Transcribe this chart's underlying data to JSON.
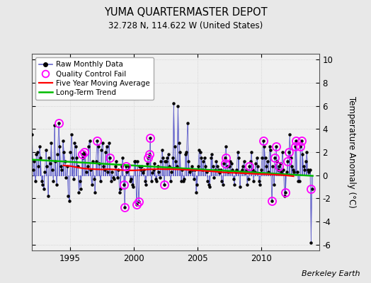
{
  "title": "YUMA QUARTERMASTER DEPOT",
  "subtitle": "32.728 N, 114.622 W (United States)",
  "ylabel": "Temperature Anomaly (°C)",
  "attribution": "Berkeley Earth",
  "ylim": [
    -6.5,
    10.5
  ],
  "xlim": [
    1992.0,
    2014.5
  ],
  "yticks": [
    -6,
    -4,
    -2,
    0,
    2,
    4,
    6,
    8,
    10
  ],
  "xticks": [
    1995,
    2000,
    2005,
    2010
  ],
  "fig_bg_color": "#e8e8e8",
  "plot_bg_color": "#f0f0f0",
  "raw_color": "#6666cc",
  "raw_marker_color": "#000000",
  "qc_color": "#ff00ff",
  "ma_color": "#ff0000",
  "trend_color": "#00bb00",
  "grid_color": "#cccccc",
  "raw_data_x": [
    1992.042,
    1992.125,
    1992.208,
    1992.292,
    1992.375,
    1992.458,
    1992.542,
    1992.625,
    1992.708,
    1992.792,
    1992.875,
    1992.958,
    1993.042,
    1993.125,
    1993.208,
    1993.292,
    1993.375,
    1993.458,
    1993.542,
    1993.625,
    1993.708,
    1993.792,
    1993.875,
    1993.958,
    1994.042,
    1994.125,
    1994.208,
    1994.292,
    1994.375,
    1994.458,
    1994.542,
    1994.625,
    1994.708,
    1994.792,
    1994.875,
    1994.958,
    1995.042,
    1995.125,
    1995.208,
    1995.292,
    1995.375,
    1995.458,
    1995.542,
    1995.625,
    1995.708,
    1995.792,
    1995.875,
    1995.958,
    1996.042,
    1996.125,
    1996.208,
    1996.292,
    1996.375,
    1996.458,
    1996.542,
    1996.625,
    1996.708,
    1996.792,
    1996.875,
    1996.958,
    1997.042,
    1997.125,
    1997.208,
    1997.292,
    1997.375,
    1997.458,
    1997.542,
    1997.625,
    1997.708,
    1997.792,
    1997.875,
    1997.958,
    1998.042,
    1998.125,
    1998.208,
    1998.292,
    1998.375,
    1998.458,
    1998.542,
    1998.625,
    1998.708,
    1998.792,
    1998.875,
    1998.958,
    1999.042,
    1999.125,
    1999.208,
    1999.292,
    1999.375,
    1999.458,
    1999.542,
    1999.625,
    1999.708,
    1999.792,
    1999.875,
    1999.958,
    2000.042,
    2000.125,
    2000.208,
    2000.292,
    2000.375,
    2000.458,
    2000.542,
    2000.625,
    2000.708,
    2000.792,
    2000.875,
    2000.958,
    2001.042,
    2001.125,
    2001.208,
    2001.292,
    2001.375,
    2001.458,
    2001.542,
    2001.625,
    2001.708,
    2001.792,
    2001.875,
    2001.958,
    2002.042,
    2002.125,
    2002.208,
    2002.292,
    2002.375,
    2002.458,
    2002.542,
    2002.625,
    2002.708,
    2002.792,
    2002.875,
    2002.958,
    2003.042,
    2003.125,
    2003.208,
    2003.292,
    2003.375,
    2003.458,
    2003.542,
    2003.625,
    2003.708,
    2003.792,
    2003.875,
    2003.958,
    2004.042,
    2004.125,
    2004.208,
    2004.292,
    2004.375,
    2004.458,
    2004.542,
    2004.625,
    2004.708,
    2004.792,
    2004.875,
    2004.958,
    2005.042,
    2005.125,
    2005.208,
    2005.292,
    2005.375,
    2005.458,
    2005.542,
    2005.625,
    2005.708,
    2005.792,
    2005.875,
    2005.958,
    2006.042,
    2006.125,
    2006.208,
    2006.292,
    2006.375,
    2006.458,
    2006.542,
    2006.625,
    2006.708,
    2006.792,
    2006.875,
    2006.958,
    2007.042,
    2007.125,
    2007.208,
    2007.292,
    2007.375,
    2007.458,
    2007.542,
    2007.625,
    2007.708,
    2007.792,
    2007.875,
    2007.958,
    2008.042,
    2008.125,
    2008.208,
    2008.292,
    2008.375,
    2008.458,
    2008.542,
    2008.625,
    2008.708,
    2008.792,
    2008.875,
    2008.958,
    2009.042,
    2009.125,
    2009.208,
    2009.292,
    2009.375,
    2009.458,
    2009.542,
    2009.625,
    2009.708,
    2009.792,
    2009.875,
    2009.958,
    2010.042,
    2010.125,
    2010.208,
    2010.292,
    2010.375,
    2010.458,
    2010.542,
    2010.625,
    2010.708,
    2010.792,
    2010.875,
    2010.958,
    2011.042,
    2011.125,
    2011.208,
    2011.292,
    2011.375,
    2011.458,
    2011.542,
    2011.625,
    2011.708,
    2011.792,
    2011.875,
    2011.958,
    2012.042,
    2012.125,
    2012.208,
    2012.292,
    2012.375,
    2012.458,
    2012.542,
    2012.625,
    2012.708,
    2012.792,
    2012.875,
    2012.958,
    2013.042,
    2013.125,
    2013.208,
    2013.292,
    2013.375,
    2013.458,
    2013.542,
    2013.625,
    2013.708,
    2013.792,
    2013.875,
    2013.958
  ],
  "raw_data_y": [
    3.5,
    0.5,
    1.2,
    -0.5,
    1.8,
    2.0,
    0.8,
    2.5,
    1.5,
    -0.5,
    -0.8,
    -1.2,
    0.3,
    2.2,
    0.8,
    -1.8,
    1.5,
    1.0,
    2.8,
    0.5,
    -0.5,
    4.3,
    1.2,
    -0.8,
    1.8,
    4.5,
    2.5,
    0.8,
    0.5,
    3.0,
    2.0,
    1.2,
    -0.2,
    0.8,
    -1.8,
    -2.2,
    2.0,
    3.5,
    1.5,
    -0.3,
    2.8,
    2.5,
    1.5,
    0.8,
    -1.5,
    -0.5,
    -1.2,
    1.8,
    1.5,
    2.0,
    1.8,
    0.3,
    0.8,
    2.5,
    3.0,
    0.5,
    -0.8,
    1.2,
    -0.3,
    -1.5,
    1.2,
    3.0,
    2.5,
    1.0,
    -0.5,
    2.2,
    2.8,
    0.8,
    0.5,
    2.0,
    2.5,
    0.3,
    2.8,
    1.5,
    -0.5,
    0.3,
    -0.2,
    -0.3,
    0.8,
    1.2,
    -0.2,
    0.5,
    -1.5,
    -1.2,
    0.8,
    1.5,
    -0.8,
    -2.8,
    0.8,
    0.3,
    0.5,
    0.8,
    -0.5,
    -0.3,
    -0.8,
    -1.0,
    1.2,
    1.2,
    -2.5,
    1.2,
    -2.3,
    0.8,
    0.5,
    0.8,
    0.2,
    0.5,
    -0.5,
    -0.8,
    1.0,
    1.5,
    1.8,
    3.2,
    -0.5,
    0.2,
    0.5,
    1.0,
    -0.3,
    -0.5,
    0.8,
    0.3,
    -0.2,
    1.2,
    2.2,
    1.5,
    -0.8,
    1.2,
    1.2,
    1.5,
    1.8,
    0.8,
    -0.5,
    0.3,
    1.5,
    6.2,
    2.5,
    1.2,
    0.8,
    6.0,
    2.8,
    2.0,
    -0.5,
    0.5,
    -0.5,
    -0.3,
    1.8,
    2.0,
    4.5,
    1.2,
    0.3,
    0.5,
    0.8,
    0.5,
    -0.3,
    0.5,
    -1.5,
    -0.8,
    0.8,
    2.2,
    2.0,
    1.5,
    0.5,
    1.2,
    1.5,
    0.8,
    0.3,
    -0.5,
    -0.8,
    -1.0,
    1.5,
    1.8,
    0.8,
    -0.2,
    0.5,
    1.2,
    0.8,
    0.5,
    0.2,
    0.5,
    -0.5,
    -0.8,
    1.0,
    1.5,
    2.5,
    0.8,
    0.3,
    0.8,
    1.2,
    1.0,
    0.5,
    -0.3,
    -0.8,
    0.3,
    0.5,
    2.0,
    1.5,
    -1.0,
    0.3,
    0.5,
    0.8,
    1.2,
    0.2,
    0.5,
    -0.8,
    -0.3,
    0.8,
    1.2,
    2.0,
    0.5,
    -0.5,
    0.3,
    1.0,
    1.5,
    0.8,
    -0.5,
    -0.8,
    0.5,
    1.5,
    3.0,
    2.5,
    1.5,
    0.8,
    1.2,
    0.3,
    2.5,
    2.2,
    -2.2,
    0.8,
    -0.8,
    1.5,
    2.5,
    1.2,
    0.5,
    0.8,
    1.0,
    0.3,
    2.0,
    0.5,
    -1.8,
    -1.5,
    0.3,
    1.2,
    2.0,
    3.5,
    1.5,
    0.8,
    0.5,
    0.3,
    2.5,
    3.0,
    0.3,
    -0.5,
    -0.5,
    2.5,
    3.0,
    1.8,
    0.8,
    0.5,
    1.2,
    2.0,
    0.5,
    0.3,
    0.5,
    -5.8,
    -1.2
  ],
  "qc_fail_x": [
    1994.125,
    1995.958,
    1996.125,
    1997.125,
    1998.125,
    1999.208,
    1999.292,
    1999.375,
    2000.208,
    2000.375,
    2001.125,
    2001.208,
    2001.292,
    2002.375,
    2007.125,
    2007.208,
    2009.042,
    2010.125,
    2010.792,
    2011.042,
    2011.125,
    2011.375,
    2011.875,
    2012.042,
    2012.125,
    2012.625,
    2012.708,
    2013.042,
    2013.125,
    2013.875
  ],
  "qc_fail_y": [
    4.5,
    1.8,
    2.0,
    3.0,
    1.5,
    -0.8,
    -2.8,
    0.8,
    -2.5,
    -2.3,
    1.5,
    1.8,
    3.2,
    -0.8,
    1.0,
    1.5,
    0.8,
    3.0,
    -2.2,
    1.5,
    2.5,
    0.8,
    -1.5,
    1.2,
    2.0,
    2.5,
    3.0,
    2.5,
    3.0,
    -1.2
  ],
  "moving_avg_x": [
    1994.5,
    1995.0,
    1995.5,
    1996.0,
    1996.5,
    1997.0,
    1997.5,
    1998.0,
    1998.5,
    1999.0,
    1999.5,
    2000.0,
    2000.5,
    2001.0,
    2001.5,
    2002.0,
    2002.5,
    2003.0,
    2003.5,
    2004.0,
    2004.5,
    2005.0,
    2005.5,
    2006.0,
    2006.5,
    2007.0,
    2007.5,
    2008.0,
    2008.5,
    2009.0,
    2009.5,
    2010.0,
    2010.5,
    2011.0,
    2011.5,
    2012.0,
    2012.5
  ],
  "moving_avg_y": [
    0.85,
    0.8,
    0.7,
    0.6,
    0.55,
    0.52,
    0.5,
    0.52,
    0.5,
    0.45,
    0.42,
    0.42,
    0.45,
    0.5,
    0.52,
    0.54,
    0.52,
    0.52,
    0.5,
    0.48,
    0.45,
    0.42,
    0.38,
    0.35,
    0.3,
    0.25,
    0.22,
    0.2,
    0.18,
    0.15,
    0.12,
    0.1,
    0.08,
    0.05,
    0.02,
    -0.02,
    -0.08
  ],
  "trend_x": [
    1992.0,
    2014.0
  ],
  "trend_y": [
    1.35,
    -0.05
  ]
}
